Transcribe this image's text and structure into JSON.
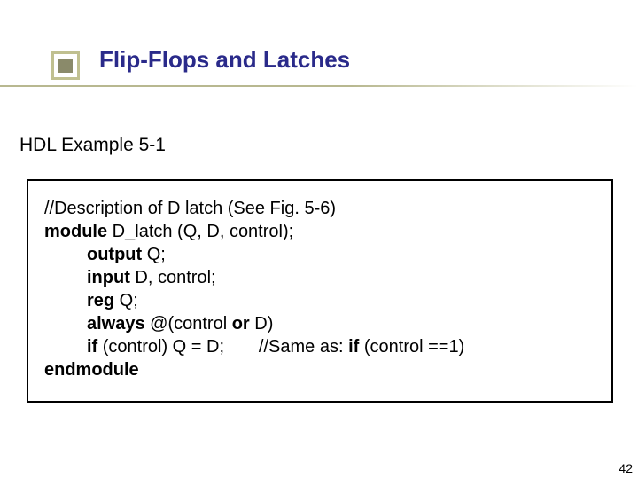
{
  "title": "Flip-Flops and Latches",
  "subtitle": "HDL Example 5-1",
  "code": {
    "l1": "//Description of D latch (See Fig. 5-6)",
    "l2a": "module",
    "l2b": " D_latch (Q, D, control);",
    "l3a": "output",
    "l3b": " Q;",
    "l4a": "input",
    "l4b": " D, control;",
    "l5a": "reg",
    "l5b": " Q;",
    "l6a": "always",
    "l6b": " @(control ",
    "l6c": "or",
    "l6d": " D)",
    "l7a": "if",
    "l7b": " (control) Q = D;       //Same as: ",
    "l7c": "if",
    "l7d": " (control ==1)",
    "l8": "endmodule"
  },
  "page": "42",
  "colors": {
    "title": "#2a2a8a",
    "bullet_border": "#c0c090",
    "bullet_fill": "#8a8a6a",
    "underline": "#b8b890",
    "box_border": "#000000",
    "text": "#000000",
    "background": "#ffffff"
  },
  "fonts": {
    "title_size": 26,
    "subtitle_size": 21,
    "code_size": 20,
    "page_size": 14
  }
}
